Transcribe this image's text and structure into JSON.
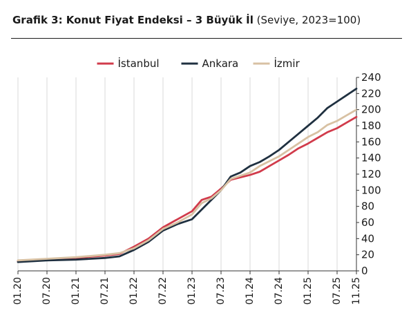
{
  "chart_data": {
    "type": "line",
    "title": "Grafik 3: Konut Fiyat Endeksi – 3 Büyük İl",
    "subtitle": "(Seviye, 2023=100)",
    "xlabel": "",
    "ylabel": "",
    "x_range": [
      "01.20",
      "11.25"
    ],
    "x_tick_labels": [
      "01.20",
      "07.20",
      "01.21",
      "07.21",
      "01.22",
      "07.22",
      "01.23",
      "07.23",
      "01.24",
      "07.24",
      "01.25",
      "07.25",
      "11.25"
    ],
    "ylim": [
      0,
      240
    ],
    "y_ticks": [
      0,
      20,
      40,
      60,
      80,
      100,
      120,
      140,
      160,
      180,
      200,
      220,
      240
    ],
    "y_axis_side": "right",
    "grid": "vertical",
    "legend_position": "top",
    "series": [
      {
        "name": "İstanbul",
        "color": "#d13b4b",
        "points": [
          [
            "01.20",
            12
          ],
          [
            "07.20",
            14
          ],
          [
            "01.21",
            16
          ],
          [
            "07.21",
            19
          ],
          [
            "10.21",
            21
          ],
          [
            "01.22",
            30
          ],
          [
            "04.22",
            40
          ],
          [
            "07.22",
            54
          ],
          [
            "10.22",
            64
          ],
          [
            "01.23",
            74
          ],
          [
            "03.23",
            88
          ],
          [
            "05.23",
            92
          ],
          [
            "07.23",
            102
          ],
          [
            "09.23",
            113
          ],
          [
            "11.23",
            116
          ],
          [
            "01.24",
            119
          ],
          [
            "03.24",
            123
          ],
          [
            "05.24",
            130
          ],
          [
            "07.24",
            137
          ],
          [
            "09.24",
            144
          ],
          [
            "11.24",
            152
          ],
          [
            "01.25",
            158
          ],
          [
            "03.25",
            165
          ],
          [
            "05.25",
            172
          ],
          [
            "07.25",
            177
          ],
          [
            "09.25",
            184
          ],
          [
            "11.25",
            191
          ]
        ]
      },
      {
        "name": "Ankara",
        "color": "#1f3040",
        "points": [
          [
            "01.20",
            11
          ],
          [
            "07.20",
            13
          ],
          [
            "01.21",
            14
          ],
          [
            "07.21",
            16
          ],
          [
            "10.21",
            18
          ],
          [
            "01.22",
            26
          ],
          [
            "04.22",
            36
          ],
          [
            "07.22",
            50
          ],
          [
            "10.22",
            58
          ],
          [
            "01.23",
            64
          ],
          [
            "03.23",
            76
          ],
          [
            "05.23",
            88
          ],
          [
            "07.23",
            100
          ],
          [
            "09.23",
            117
          ],
          [
            "11.23",
            122
          ],
          [
            "01.24",
            130
          ],
          [
            "03.24",
            135
          ],
          [
            "05.24",
            142
          ],
          [
            "07.24",
            150
          ],
          [
            "09.24",
            160
          ],
          [
            "11.24",
            170
          ],
          [
            "01.25",
            180
          ],
          [
            "03.25",
            190
          ],
          [
            "05.25",
            202
          ],
          [
            "07.25",
            210
          ],
          [
            "09.25",
            218
          ],
          [
            "11.25",
            226
          ]
        ]
      },
      {
        "name": "İzmir",
        "color": "#d8c1a3",
        "points": [
          [
            "01.20",
            13
          ],
          [
            "07.20",
            15
          ],
          [
            "01.21",
            17
          ],
          [
            "07.21",
            20
          ],
          [
            "10.21",
            22
          ],
          [
            "01.22",
            28
          ],
          [
            "04.22",
            38
          ],
          [
            "07.22",
            52
          ],
          [
            "10.22",
            60
          ],
          [
            "01.23",
            70
          ],
          [
            "03.23",
            84
          ],
          [
            "05.23",
            90
          ],
          [
            "07.23",
            100
          ],
          [
            "09.23",
            114
          ],
          [
            "11.23",
            118
          ],
          [
            "01.24",
            122
          ],
          [
            "03.24",
            130
          ],
          [
            "05.24",
            136
          ],
          [
            "07.24",
            142
          ],
          [
            "09.24",
            150
          ],
          [
            "11.24",
            158
          ],
          [
            "01.25",
            166
          ],
          [
            "03.25",
            172
          ],
          [
            "05.25",
            181
          ],
          [
            "07.25",
            186
          ],
          [
            "09.25",
            193
          ],
          [
            "11.25",
            200
          ]
        ]
      }
    ]
  }
}
